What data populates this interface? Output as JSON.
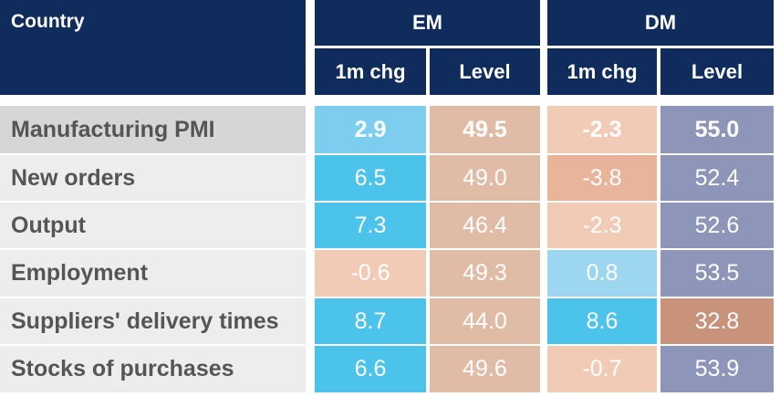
{
  "header": {
    "country": "Country",
    "groups": [
      "EM",
      "DM"
    ],
    "subheaders": [
      "1m chg",
      "Level",
      "1m chg",
      "Level"
    ]
  },
  "table": {
    "rows": [
      {
        "label": "Manufacturing PMI",
        "cells": [
          "2.9",
          "49.5",
          "-2.3",
          "55.0"
        ],
        "colors": [
          "#7ccdee",
          "#e0bba6",
          "#f1cbb6",
          "#8d96b8"
        ]
      },
      {
        "label": "New orders",
        "cells": [
          "6.5",
          "49.0",
          "-3.8",
          "52.4"
        ],
        "colors": [
          "#4cc3eb",
          "#e0bba6",
          "#e8b59b",
          "#8d96b8"
        ]
      },
      {
        "label": "Output",
        "cells": [
          "7.3",
          "46.4",
          "-2.3",
          "52.6"
        ],
        "colors": [
          "#4cc3eb",
          "#e0bba6",
          "#f1cbb6",
          "#8d96b8"
        ]
      },
      {
        "label": "Employment",
        "cells": [
          "-0.6",
          "49.3",
          "0.8",
          "53.5"
        ],
        "colors": [
          "#f1cbb6",
          "#e0bba6",
          "#9dd6f0",
          "#8d96b8"
        ]
      },
      {
        "label": "Suppliers' delivery times",
        "cells": [
          "8.7",
          "44.0",
          "8.6",
          "32.8"
        ],
        "colors": [
          "#4cc3eb",
          "#e0bba6",
          "#4cc3eb",
          "#c8937a"
        ]
      },
      {
        "label": "Stocks of purchases",
        "cells": [
          "6.6",
          "49.6",
          "-0.7",
          "53.9"
        ],
        "colors": [
          "#4cc3eb",
          "#e0bba6",
          "#f1cbb6",
          "#8d96b8"
        ]
      }
    ]
  }
}
